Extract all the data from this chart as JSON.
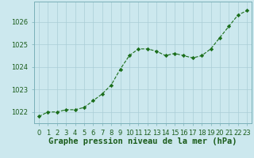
{
  "x": [
    0,
    1,
    2,
    3,
    4,
    5,
    6,
    7,
    8,
    9,
    10,
    11,
    12,
    13,
    14,
    15,
    16,
    17,
    18,
    19,
    20,
    21,
    22,
    23
  ],
  "y": [
    1021.8,
    1022.0,
    1022.0,
    1022.1,
    1022.1,
    1022.2,
    1022.5,
    1022.8,
    1023.2,
    1023.9,
    1024.5,
    1024.8,
    1024.8,
    1024.7,
    1024.5,
    1024.6,
    1024.5,
    1024.4,
    1024.5,
    1024.8,
    1025.3,
    1025.8,
    1026.3,
    1026.5
  ],
  "line_color": "#1a6e1a",
  "marker": "D",
  "marker_size": 2.2,
  "bg_color": "#cce8ee",
  "grid_color": "#aacdd6",
  "ylim": [
    1021.5,
    1026.9
  ],
  "yticks": [
    1022,
    1023,
    1024,
    1025,
    1026
  ],
  "xlabel": "Graphe pression niveau de la mer (hPa)",
  "xlabel_fontsize": 7.5,
  "xlabel_color": "#1a5c1a",
  "tick_fontsize": 6.0,
  "tick_color": "#1a5c1a",
  "label_weight": "bold",
  "spine_color": "#7ab0b8"
}
